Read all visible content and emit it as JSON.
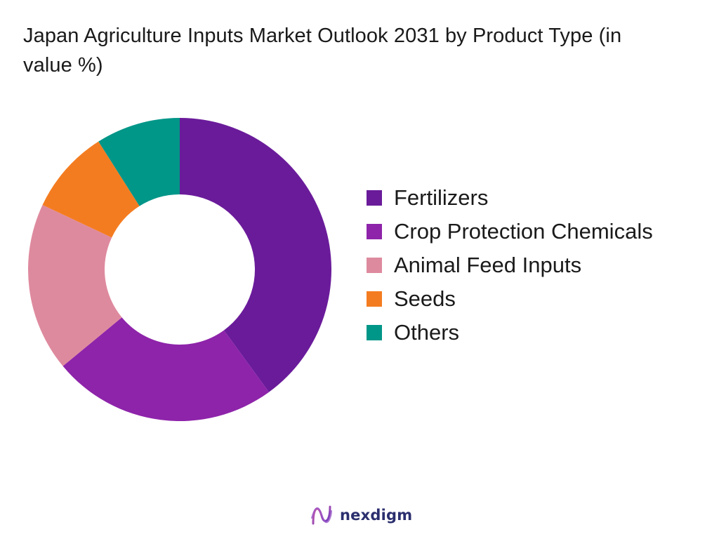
{
  "title": "Japan Agriculture Inputs Market Outlook 2031 by Product Type (in value %)",
  "chart_data": {
    "type": "pie",
    "donut": true,
    "title": "Japan Agriculture Inputs Market Outlook 2031 by Product Type (in value %)",
    "categories": [
      "Fertilizers",
      "Crop Protection Chemicals",
      "Animal Feed Inputs",
      "Seeds",
      "Others"
    ],
    "values": [
      40,
      24,
      18,
      9,
      9
    ],
    "colors": [
      "#6a1b9a",
      "#8e24aa",
      "#de8a9e",
      "#f47c20",
      "#009688"
    ],
    "legend_position": "right"
  },
  "legend": {
    "items": [
      {
        "label": "Fertilizers",
        "color": "#6a1b9a"
      },
      {
        "label": "Crop Protection Chemicals",
        "color": "#8e24aa"
      },
      {
        "label": "Animal Feed Inputs",
        "color": "#de8a9e"
      },
      {
        "label": "Seeds",
        "color": "#f47c20"
      },
      {
        "label": "Others",
        "color": "#009688"
      }
    ]
  },
  "logo": {
    "text": "nexdigm",
    "icon": "nexdigm-logo-icon"
  }
}
